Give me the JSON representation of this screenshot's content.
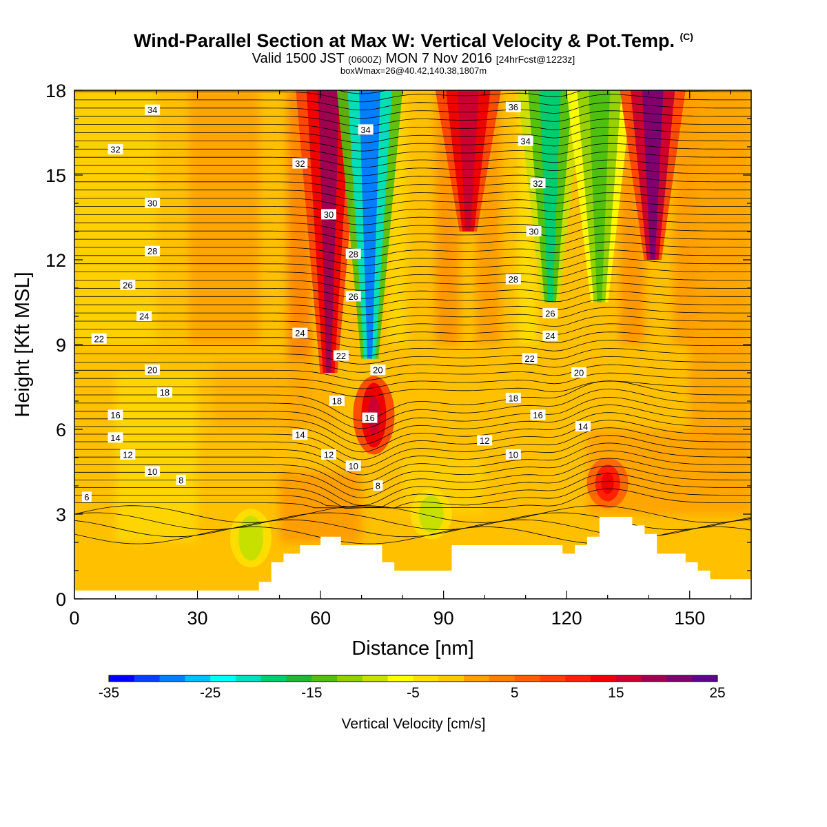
{
  "title": {
    "main": "Wind-Parallel Section at Max W: Vertical Velocity & Pot.Temp.",
    "copyright": "(C)",
    "valid_prefix": "Valid 1500 JST",
    "valid_zulu": "(0600Z)",
    "valid_date": "MON 7 Nov 2016",
    "forecast": "[24hrFcst@1223z]",
    "boxwmax": "boxWmax=26@40.42,140.38,1807m"
  },
  "chart_data": {
    "type": "heatmap",
    "xlabel": "Distance [nm]",
    "ylabel": "Height [Kft MSL]",
    "xlim": [
      0,
      165
    ],
    "ylim": [
      0,
      18
    ],
    "x_ticks": [
      0,
      30,
      60,
      90,
      120,
      150
    ],
    "y_ticks": [
      0,
      3,
      6,
      9,
      12,
      15,
      18
    ],
    "colorbar": {
      "label": "Vertical Velocity [cm/s]",
      "range": [
        -35,
        25
      ],
      "tick_labels": [
        -35,
        -25,
        -15,
        -5,
        5,
        15,
        25
      ],
      "colors": [
        "#0000ff",
        "#0040ff",
        "#0080ff",
        "#00bfff",
        "#00ffff",
        "#00e0c0",
        "#00cc70",
        "#20b830",
        "#50c010",
        "#90d000",
        "#c8e000",
        "#ffff00",
        "#ffe000",
        "#ffc800",
        "#ffa000",
        "#ff8000",
        "#ff6000",
        "#ff4000",
        "#ff2000",
        "#ee0000",
        "#cc0030",
        "#a00050",
        "#800070",
        "#600090"
      ]
    },
    "terrain": {
      "x": [
        0,
        45,
        45,
        48,
        48,
        51,
        51,
        55,
        55,
        60,
        60,
        65,
        65,
        75,
        75,
        78,
        78,
        81,
        81,
        92,
        92,
        95,
        95,
        119,
        119,
        122,
        122,
        125,
        125,
        128,
        128,
        136,
        136,
        139,
        139,
        142,
        142,
        149,
        149,
        152,
        152,
        155,
        155,
        158,
        158,
        165
      ],
      "y": [
        0.3,
        0.3,
        0.6,
        0.6,
        1.3,
        1.3,
        1.6,
        1.6,
        1.9,
        1.9,
        2.2,
        2.2,
        1.9,
        1.9,
        1.3,
        1.3,
        1.0,
        1.0,
        1.0,
        1.0,
        1.9,
        1.9,
        1.9,
        1.9,
        1.6,
        1.6,
        1.9,
        1.9,
        2.2,
        2.2,
        2.9,
        2.9,
        2.6,
        2.6,
        2.3,
        2.3,
        1.6,
        1.6,
        1.3,
        1.3,
        1.0,
        1.0,
        0.7,
        0.7,
        0.7,
        0.7
      ]
    },
    "vertical_velocity_features": [
      {
        "x": 62,
        "y_range": [
          8,
          18
        ],
        "w_cms": 18
      },
      {
        "x": 72,
        "y_range": [
          8.5,
          18
        ],
        "w_cms": -30
      },
      {
        "x": 73,
        "y_range": [
          5.5,
          7.5
        ],
        "w_cms": 17
      },
      {
        "x": 96,
        "y_range": [
          13,
          18
        ],
        "w_cms": 17
      },
      {
        "x": 116,
        "y_range": [
          10.5,
          18
        ],
        "w_cms": -20
      },
      {
        "x": 128,
        "y_range": [
          10.5,
          18
        ],
        "w_cms": -14
      },
      {
        "x": 141,
        "y_range": [
          12,
          18
        ],
        "w_cms": 20
      },
      {
        "x": 43,
        "y_range": [
          1.5,
          2.8
        ],
        "w_cms": -10
      },
      {
        "x": 87,
        "y_range": [
          2.5,
          3.5
        ],
        "w_cms": -10
      },
      {
        "x": 130,
        "y_range": [
          3.6,
          4.6
        ],
        "w_cms": 14
      }
    ],
    "theta_contour_labels": [
      {
        "x": 3,
        "y": 3.6,
        "label": "6"
      },
      {
        "x": 26,
        "y": 4.2,
        "label": "8"
      },
      {
        "x": 19,
        "y": 4.5,
        "label": "10"
      },
      {
        "x": 13,
        "y": 5.1,
        "label": "12"
      },
      {
        "x": 10,
        "y": 5.7,
        "label": "14"
      },
      {
        "x": 10,
        "y": 6.5,
        "label": "16"
      },
      {
        "x": 22,
        "y": 7.3,
        "label": "18"
      },
      {
        "x": 19,
        "y": 8.1,
        "label": "20"
      },
      {
        "x": 6,
        "y": 9.2,
        "label": "22"
      },
      {
        "x": 17,
        "y": 10.0,
        "label": "24"
      },
      {
        "x": 13,
        "y": 11.1,
        "label": "26"
      },
      {
        "x": 19,
        "y": 12.3,
        "label": "28"
      },
      {
        "x": 19,
        "y": 14.0,
        "label": "30"
      },
      {
        "x": 10,
        "y": 15.9,
        "label": "32"
      },
      {
        "x": 19,
        "y": 17.3,
        "label": "34"
      },
      {
        "x": 55,
        "y": 5.8,
        "label": "14"
      },
      {
        "x": 62,
        "y": 5.1,
        "label": "12"
      },
      {
        "x": 68,
        "y": 4.7,
        "label": "10"
      },
      {
        "x": 74,
        "y": 4.0,
        "label": "8"
      },
      {
        "x": 64,
        "y": 7.0,
        "label": "18"
      },
      {
        "x": 72,
        "y": 6.4,
        "label": "16"
      },
      {
        "x": 74,
        "y": 8.1,
        "label": "20"
      },
      {
        "x": 65,
        "y": 8.6,
        "label": "22"
      },
      {
        "x": 55,
        "y": 9.4,
        "label": "24"
      },
      {
        "x": 68,
        "y": 10.7,
        "label": "26"
      },
      {
        "x": 68,
        "y": 12.2,
        "label": "28"
      },
      {
        "x": 62,
        "y": 13.6,
        "label": "30"
      },
      {
        "x": 55,
        "y": 15.4,
        "label": "32"
      },
      {
        "x": 71,
        "y": 16.6,
        "label": "34"
      },
      {
        "x": 100,
        "y": 5.6,
        "label": "12"
      },
      {
        "x": 107,
        "y": 5.1,
        "label": "10"
      },
      {
        "x": 107,
        "y": 7.1,
        "label": "18"
      },
      {
        "x": 113,
        "y": 6.5,
        "label": "16"
      },
      {
        "x": 123,
        "y": 8.0,
        "label": "20"
      },
      {
        "x": 111,
        "y": 8.5,
        "label": "22"
      },
      {
        "x": 116,
        "y": 9.3,
        "label": "24"
      },
      {
        "x": 116,
        "y": 10.1,
        "label": "26"
      },
      {
        "x": 107,
        "y": 11.3,
        "label": "28"
      },
      {
        "x": 112,
        "y": 13.0,
        "label": "30"
      },
      {
        "x": 113,
        "y": 14.7,
        "label": "32"
      },
      {
        "x": 110,
        "y": 16.2,
        "label": "34"
      },
      {
        "x": 107,
        "y": 17.4,
        "label": "36"
      },
      {
        "x": 124,
        "y": 6.1,
        "label": "14"
      }
    ]
  }
}
